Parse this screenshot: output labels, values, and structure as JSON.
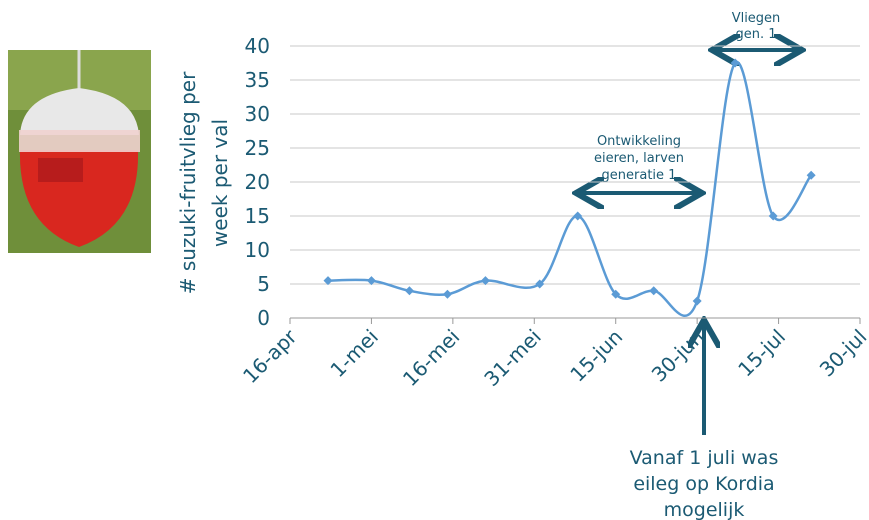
{
  "chart_data": {
    "type": "line",
    "y_label_lines": [
      "# suzuki-fruitvlieg per",
      "week per val"
    ],
    "x": [
      7,
      15,
      22,
      29,
      36,
      46,
      53,
      60,
      67,
      75,
      82,
      89,
      96
    ],
    "series": [
      {
        "color": "#5b9bd5",
        "values": [
          5.5,
          5.5,
          4,
          3.5,
          5.5,
          5,
          15,
          3.5,
          4,
          2.5,
          37.5,
          15,
          21
        ]
      }
    ],
    "xlim": [
      0,
      105
    ],
    "xticks": [
      {
        "value": 0,
        "label": "16-apr"
      },
      {
        "value": 15,
        "label": "1-mei"
      },
      {
        "value": 30,
        "label": "16-mei"
      },
      {
        "value": 45,
        "label": "31-mei"
      },
      {
        "value": 60,
        "label": "15-jun"
      },
      {
        "value": 75,
        "label": "30-jun"
      },
      {
        "value": 90,
        "label": "15-jul"
      },
      {
        "value": 105,
        "label": "30-jul"
      }
    ],
    "ylim": [
      0,
      40
    ],
    "yticks": [
      0,
      5,
      10,
      15,
      20,
      25,
      30,
      35,
      40
    ],
    "grid": true,
    "annotations": [
      {
        "lines": [
          "Vliegen",
          "gen. 1"
        ]
      },
      {
        "lines": [
          "Ontwikkeling",
          "eieren, larven",
          "generatie 1"
        ]
      },
      {
        "lines": [
          "Vanaf 1 juli was",
          "eileg op Kordia",
          "mogelijk"
        ]
      }
    ]
  }
}
